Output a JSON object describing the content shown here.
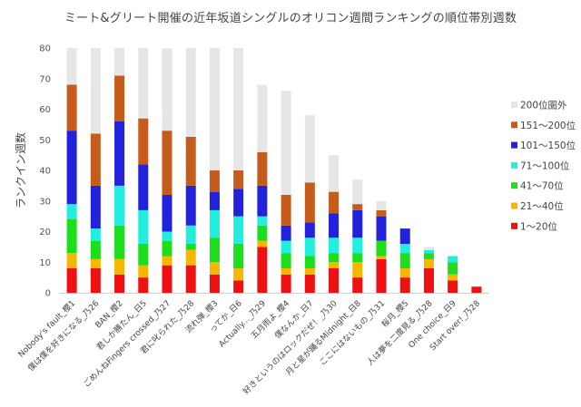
{
  "chart_data": {
    "type": "bar",
    "stacked": true,
    "title": "ミート&グリート開催の近年坂道シングルのオリコン週間ランキングの順位帯別週数",
    "xlabel": "",
    "ylabel": "ランクイン週数",
    "ylim": [
      0,
      80
    ],
    "yticks": [
      "0",
      "10",
      "20",
      "30",
      "40",
      "50",
      "60",
      "70",
      "80"
    ],
    "grid": false,
    "legend_position": "right",
    "categories": [
      "Nobody's fault_櫻1",
      "僕は僕を好きになる_乃26",
      "BAN_櫻2",
      "君しか勝たん_日5",
      "ごめんねFingers crossed_乃27",
      "君に叱られた_乃28",
      "流れ弾_櫻3",
      "ってか_日6",
      "Actually..._乃29",
      "五月雨よ_櫻4",
      "僕なんか_日7",
      "好きというのはロックだぜ！_乃30",
      "月と星が踊るMidnight_日8",
      "ここにはないもの_乃31",
      "桜月_櫻5",
      "人は夢を二度見る_乃28",
      "One choice_日9",
      "Start over!_乃28"
    ],
    "series": [
      {
        "name": "1〜20位",
        "color": "#ee1111",
        "values": [
          8,
          8,
          6,
          5,
          9,
          9,
          6,
          4,
          15,
          6,
          6,
          8,
          5,
          11,
          5,
          8,
          4,
          2
        ]
      },
      {
        "name": "21〜40位",
        "color": "#f5b800",
        "values": [
          5,
          3,
          5,
          4,
          3,
          5,
          4,
          4,
          2,
          2,
          2,
          2,
          5,
          1,
          3,
          3,
          2,
          0
        ]
      },
      {
        "name": "41〜70位",
        "color": "#1ddd1d",
        "values": [
          11,
          6,
          11,
          7,
          5,
          2,
          8,
          8,
          5,
          5,
          4,
          3,
          3,
          5,
          5,
          2,
          4,
          0
        ]
      },
      {
        "name": "71〜100位",
        "color": "#22eedd",
        "values": [
          5,
          4,
          13,
          11,
          3,
          6,
          9,
          9,
          3,
          4,
          6,
          5,
          5,
          0,
          3,
          1,
          2,
          0
        ]
      },
      {
        "name": "101〜150位",
        "color": "#2222dd",
        "values": [
          24,
          14,
          21,
          15,
          12,
          13,
          6,
          9,
          10,
          5,
          5,
          8,
          9,
          8,
          5,
          0,
          0,
          0
        ]
      },
      {
        "name": "151〜200位",
        "color": "#c65c1c",
        "values": [
          15,
          17,
          15,
          15,
          21,
          16,
          7,
          6,
          11,
          10,
          13,
          7,
          2,
          2,
          0,
          0,
          0,
          0
        ]
      },
      {
        "name": "200位圏外",
        "color": "#e6e6e6",
        "values": [
          12,
          28,
          9,
          23,
          27,
          29,
          40,
          40,
          22,
          34,
          22,
          12,
          8,
          3,
          0,
          1,
          0,
          0
        ]
      }
    ]
  }
}
